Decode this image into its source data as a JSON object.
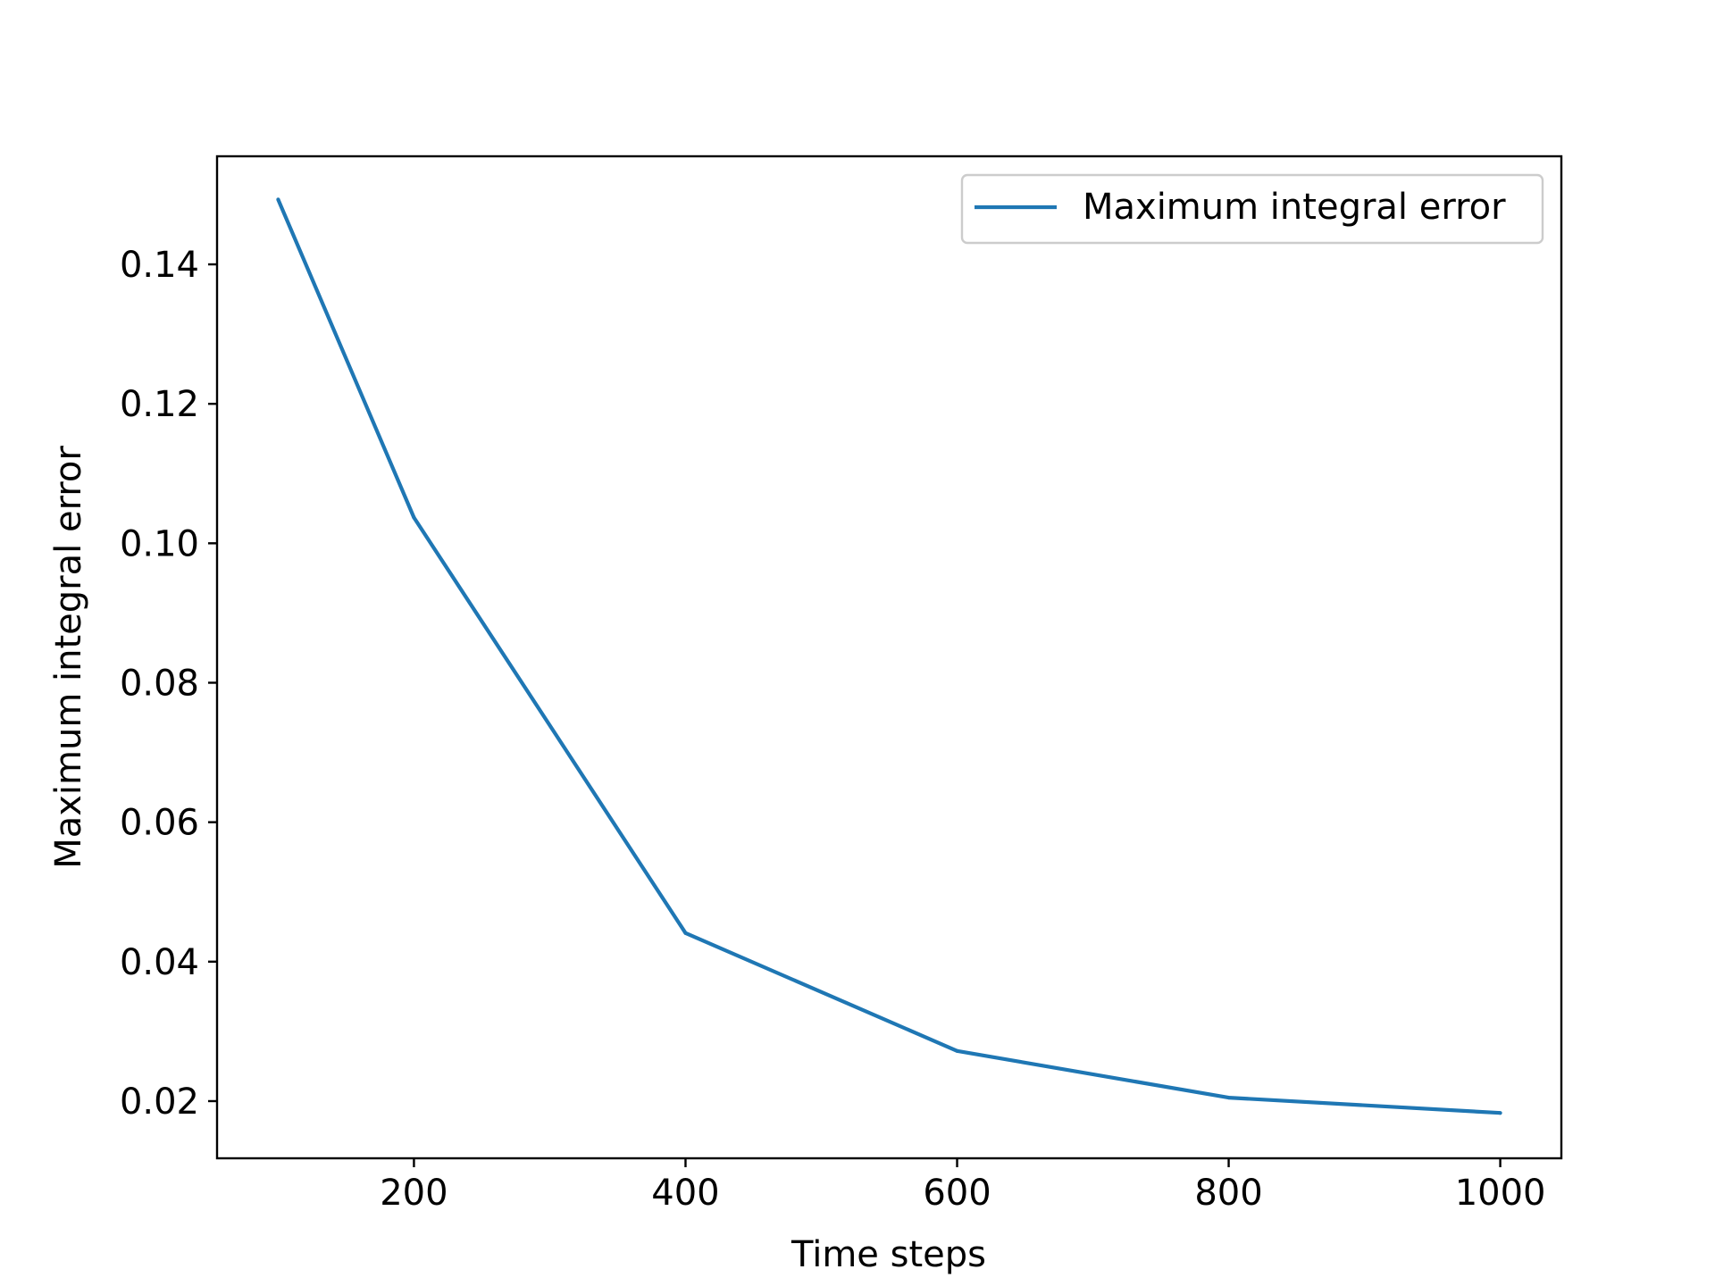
{
  "chart_data": {
    "type": "line",
    "title": "",
    "xlabel": "Time steps",
    "ylabel": "Maximum integral error",
    "xlim": [
      55,
      1045
    ],
    "ylim": [
      0.0118,
      0.1555
    ],
    "xticks": [
      200,
      400,
      600,
      800,
      1000
    ],
    "yticks": [
      0.02,
      0.04,
      0.06,
      0.08,
      0.1,
      0.12,
      0.14
    ],
    "xtick_labels": [
      "200",
      "400",
      "600",
      "800",
      "1000"
    ],
    "ytick_labels": [
      "0.02",
      "0.04",
      "0.06",
      "0.08",
      "0.10",
      "0.12",
      "0.14"
    ],
    "grid": false,
    "legend_position": "top-right",
    "series": [
      {
        "name": "Maximum integral error",
        "color": "#1f77b4",
        "x": [
          100,
          200,
          400,
          600,
          800,
          1000
        ],
        "y": [
          0.1493,
          0.1037,
          0.0441,
          0.0272,
          0.0205,
          0.0183
        ]
      }
    ]
  }
}
